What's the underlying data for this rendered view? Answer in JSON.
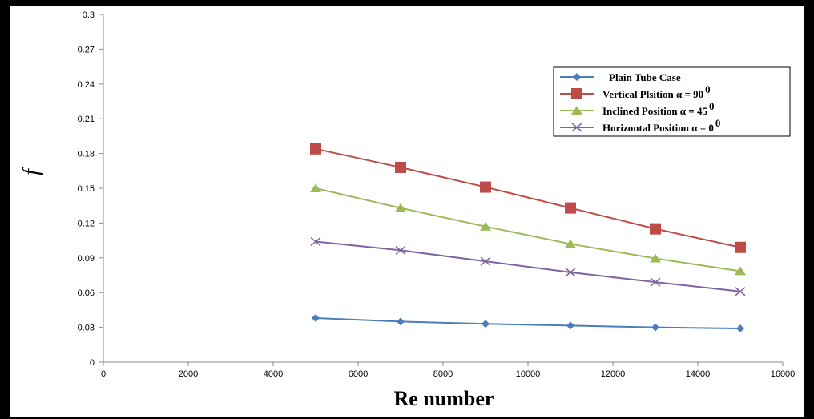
{
  "chart_data": {
    "type": "line",
    "xlabel": "Re number",
    "ylabel": "f",
    "xlim": [
      0,
      16000
    ],
    "ylim": [
      0,
      0.3
    ],
    "x_ticks": [
      "0",
      "2000",
      "4000",
      "6000",
      "8000",
      "10000",
      "12000",
      "14000",
      "16000"
    ],
    "y_ticks": [
      "0",
      "0.03",
      "0.06",
      "0.09",
      "0.12",
      "0.15",
      "0.18",
      "0.21",
      "0.24",
      "0.27",
      "0.3"
    ],
    "grid": false,
    "legend_position": "top-right",
    "x": [
      5000,
      7000,
      9000,
      11000,
      13000,
      15000
    ],
    "series": [
      {
        "name": "Plain Tube Case",
        "name_sup": "",
        "color": "#4a7ebb",
        "marker": "diamond",
        "values": [
          0.038,
          0.035,
          0.033,
          0.0315,
          0.03,
          0.029
        ]
      },
      {
        "name": "Vertical Plsition α = 90",
        "name_sup": "0",
        "color": "#be4b48",
        "marker": "square",
        "values": [
          0.184,
          0.168,
          0.151,
          0.133,
          0.115,
          0.099
        ]
      },
      {
        "name": "Inclined Position α = 45",
        "name_sup": "0",
        "color": "#9bbb59",
        "marker": "triangle",
        "values": [
          0.15,
          0.133,
          0.117,
          0.102,
          0.0895,
          0.0785
        ]
      },
      {
        "name": "Horizontal Position α = 0",
        "name_sup": "0",
        "color": "#8064a2",
        "marker": "x",
        "values": [
          0.104,
          0.0965,
          0.087,
          0.0775,
          0.069,
          0.061
        ]
      }
    ]
  }
}
